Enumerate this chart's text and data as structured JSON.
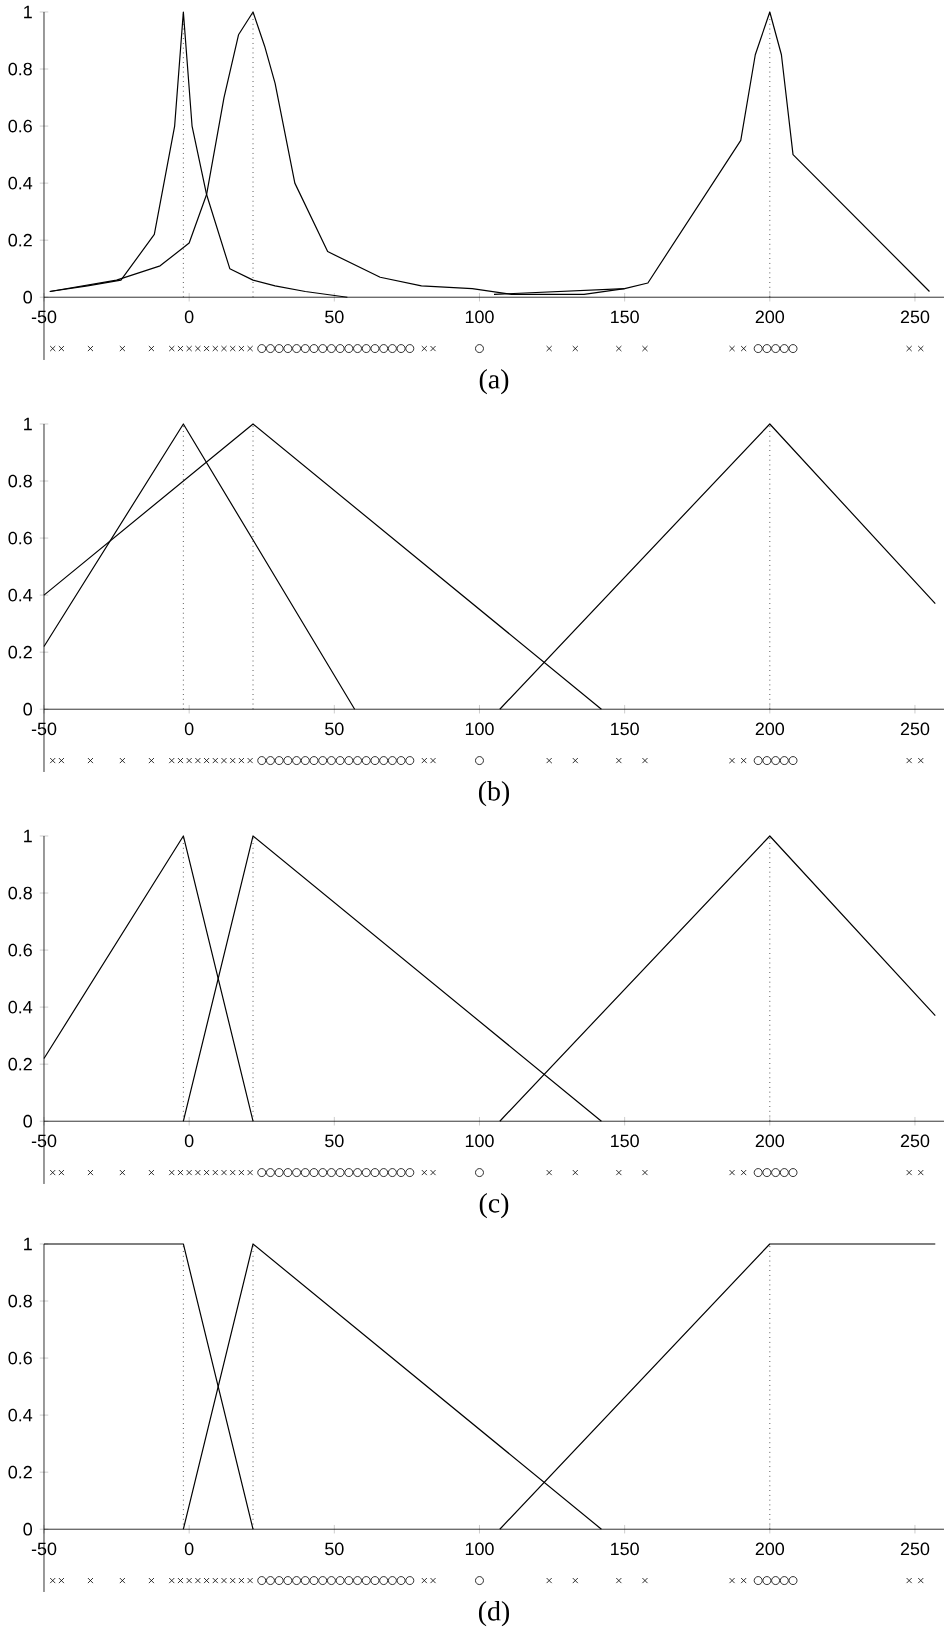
{
  "chart_data": [
    {
      "type": "line",
      "xlabel": "(a)",
      "xlim": [
        -50,
        260
      ],
      "ylim": [
        -0.22,
        1
      ],
      "xticks": [
        -50,
        0,
        50,
        100,
        150,
        200,
        250
      ],
      "yticks": [
        0,
        0.2,
        0.4,
        0.6,
        0.8,
        1
      ],
      "ref_lines": [
        {
          "axis": "x",
          "value": -2,
          "line_style": "dotted"
        },
        {
          "axis": "x",
          "value": 22,
          "line_style": "dotted"
        },
        {
          "axis": "x",
          "value": 200,
          "line_style": "dotted"
        }
      ],
      "series": [
        {
          "color": "#000000",
          "x": [
            -48,
            -35,
            -23.5,
            -12,
            -5,
            -2,
            1,
            6,
            14,
            22,
            29.6,
            40,
            54.5
          ],
          "values": [
            0.02,
            0.04,
            0.06,
            0.22,
            0.6,
            1,
            0.6,
            0.36,
            0.1,
            0.06,
            0.04,
            0.02,
            0
          ]
        },
        {
          "color": "#000000",
          "x": [
            -48,
            -25,
            -10,
            0,
            6,
            12,
            17,
            22,
            26,
            29.6,
            36.4,
            47.7,
            65.8,
            80,
            97.5,
            111,
            136,
            150
          ],
          "values": [
            0.02,
            0.06,
            0.11,
            0.19,
            0.36,
            0.7,
            0.92,
            1,
            0.88,
            0.75,
            0.4,
            0.16,
            0.07,
            0.04,
            0.03,
            0.01,
            0.01,
            0.03
          ]
        },
        {
          "color": "#000000",
          "x": [
            105,
            150,
            158,
            190,
            195,
            200,
            204,
            208,
            255
          ],
          "values": [
            0.01,
            0.03,
            0.05,
            0.55,
            0.85,
            1,
            0.85,
            0.5,
            0.02
          ]
        },
        {
          "type": "scatter",
          "color": "#000000",
          "marker": "cross",
          "x": [
            -47,
            -44,
            -34,
            -23,
            -13,
            -6,
            -3,
            0,
            3,
            6,
            9,
            12,
            15,
            18,
            21,
            81,
            84,
            124,
            133,
            148,
            157,
            187,
            191,
            248,
            252
          ],
          "values": [
            -0.18,
            -0.18,
            -0.18,
            -0.18,
            -0.18,
            -0.18,
            -0.18,
            -0.18,
            -0.18,
            -0.18,
            -0.18,
            -0.18,
            -0.18,
            -0.18,
            -0.18,
            -0.18,
            -0.18,
            -0.18,
            -0.18,
            -0.18,
            -0.18,
            -0.18,
            -0.18,
            -0.18,
            -0.18
          ]
        },
        {
          "type": "scatter",
          "color": "#000000",
          "marker": "circle",
          "x": [
            25,
            28,
            31,
            34,
            37,
            40,
            43,
            46,
            49,
            52,
            55,
            58,
            61,
            64,
            67,
            70,
            73,
            76,
            100,
            196,
            199,
            202,
            205,
            208
          ],
          "values": [
            -0.18,
            -0.18,
            -0.18,
            -0.18,
            -0.18,
            -0.18,
            -0.18,
            -0.18,
            -0.18,
            -0.18,
            -0.18,
            -0.18,
            -0.18,
            -0.18,
            -0.18,
            -0.18,
            -0.18,
            -0.18,
            -0.18,
            -0.18,
            -0.18,
            -0.18,
            -0.18,
            -0.18
          ]
        }
      ]
    },
    {
      "type": "line",
      "xlabel": "(b)",
      "xlim": [
        -50,
        260
      ],
      "ylim": [
        -0.22,
        1
      ],
      "xticks": [
        -50,
        0,
        50,
        100,
        150,
        200,
        250
      ],
      "yticks": [
        0,
        0.2,
        0.4,
        0.6,
        0.8,
        1
      ],
      "ref_lines": [
        {
          "axis": "x",
          "value": -2,
          "line_style": "dotted"
        },
        {
          "axis": "x",
          "value": 22,
          "line_style": "dotted"
        },
        {
          "axis": "x",
          "value": 200,
          "line_style": "dotted"
        }
      ],
      "series": [
        {
          "color": "#000000",
          "x": [
            -50,
            -2,
            57
          ],
          "values": [
            0.22,
            1,
            0
          ]
        },
        {
          "color": "#000000",
          "x": [
            -50,
            22,
            142
          ],
          "values": [
            0.4,
            1,
            0
          ]
        },
        {
          "color": "#000000",
          "x": [
            107,
            200,
            257
          ],
          "values": [
            0,
            1,
            0.37
          ]
        },
        {
          "type": "scatter",
          "color": "#000000",
          "marker": "cross",
          "x": [
            -47,
            -44,
            -34,
            -23,
            -13,
            -6,
            -3,
            0,
            3,
            6,
            9,
            12,
            15,
            18,
            21,
            81,
            84,
            124,
            133,
            148,
            157,
            187,
            191,
            248,
            252
          ],
          "values": [
            -0.18,
            -0.18,
            -0.18,
            -0.18,
            -0.18,
            -0.18,
            -0.18,
            -0.18,
            -0.18,
            -0.18,
            -0.18,
            -0.18,
            -0.18,
            -0.18,
            -0.18,
            -0.18,
            -0.18,
            -0.18,
            -0.18,
            -0.18,
            -0.18,
            -0.18,
            -0.18,
            -0.18,
            -0.18
          ]
        },
        {
          "type": "scatter",
          "color": "#000000",
          "marker": "circle",
          "x": [
            25,
            28,
            31,
            34,
            37,
            40,
            43,
            46,
            49,
            52,
            55,
            58,
            61,
            64,
            67,
            70,
            73,
            76,
            100,
            196,
            199,
            202,
            205,
            208
          ],
          "values": [
            -0.18,
            -0.18,
            -0.18,
            -0.18,
            -0.18,
            -0.18,
            -0.18,
            -0.18,
            -0.18,
            -0.18,
            -0.18,
            -0.18,
            -0.18,
            -0.18,
            -0.18,
            -0.18,
            -0.18,
            -0.18,
            -0.18,
            -0.18,
            -0.18,
            -0.18,
            -0.18,
            -0.18
          ]
        }
      ]
    },
    {
      "type": "line",
      "xlabel": "(c)",
      "xlim": [
        -50,
        260
      ],
      "ylim": [
        -0.22,
        1
      ],
      "xticks": [
        -50,
        0,
        50,
        100,
        150,
        200,
        250
      ],
      "yticks": [
        0,
        0.2,
        0.4,
        0.6,
        0.8,
        1
      ],
      "ref_lines": [
        {
          "axis": "x",
          "value": -2,
          "line_style": "dotted"
        },
        {
          "axis": "x",
          "value": 22,
          "line_style": "dotted"
        },
        {
          "axis": "x",
          "value": 200,
          "line_style": "dotted"
        }
      ],
      "series": [
        {
          "color": "#000000",
          "x": [
            -50,
            -2,
            22
          ],
          "values": [
            0.22,
            1,
            0
          ]
        },
        {
          "color": "#000000",
          "x": [
            -2,
            22,
            142
          ],
          "values": [
            0,
            1,
            0
          ]
        },
        {
          "color": "#000000",
          "x": [
            107,
            200,
            257
          ],
          "values": [
            0,
            1,
            0.37
          ]
        },
        {
          "type": "scatter",
          "color": "#000000",
          "marker": "cross",
          "x": [
            -47,
            -44,
            -34,
            -23,
            -13,
            -6,
            -3,
            0,
            3,
            6,
            9,
            12,
            15,
            18,
            21,
            81,
            84,
            124,
            133,
            148,
            157,
            187,
            191,
            248,
            252
          ],
          "values": [
            -0.18,
            -0.18,
            -0.18,
            -0.18,
            -0.18,
            -0.18,
            -0.18,
            -0.18,
            -0.18,
            -0.18,
            -0.18,
            -0.18,
            -0.18,
            -0.18,
            -0.18,
            -0.18,
            -0.18,
            -0.18,
            -0.18,
            -0.18,
            -0.18,
            -0.18,
            -0.18,
            -0.18,
            -0.18
          ]
        },
        {
          "type": "scatter",
          "color": "#000000",
          "marker": "circle",
          "x": [
            25,
            28,
            31,
            34,
            37,
            40,
            43,
            46,
            49,
            52,
            55,
            58,
            61,
            64,
            67,
            70,
            73,
            76,
            100,
            196,
            199,
            202,
            205,
            208
          ],
          "values": [
            -0.18,
            -0.18,
            -0.18,
            -0.18,
            -0.18,
            -0.18,
            -0.18,
            -0.18,
            -0.18,
            -0.18,
            -0.18,
            -0.18,
            -0.18,
            -0.18,
            -0.18,
            -0.18,
            -0.18,
            -0.18,
            -0.18,
            -0.18,
            -0.18,
            -0.18,
            -0.18,
            -0.18
          ]
        }
      ]
    },
    {
      "type": "line",
      "xlabel": "(d)",
      "xlim": [
        -50,
        260
      ],
      "ylim": [
        -0.22,
        1
      ],
      "xticks": [
        -50,
        0,
        50,
        100,
        150,
        200,
        250
      ],
      "yticks": [
        0,
        0.2,
        0.4,
        0.6,
        0.8,
        1
      ],
      "ref_lines": [
        {
          "axis": "x",
          "value": -2,
          "line_style": "dotted"
        },
        {
          "axis": "x",
          "value": 22,
          "line_style": "dotted"
        },
        {
          "axis": "x",
          "value": 200,
          "line_style": "dotted"
        }
      ],
      "series": [
        {
          "color": "#000000",
          "x": [
            -50,
            -2,
            22
          ],
          "values": [
            1,
            1,
            0
          ]
        },
        {
          "color": "#000000",
          "x": [
            -2,
            22,
            142
          ],
          "values": [
            0,
            1,
            0
          ]
        },
        {
          "color": "#000000",
          "x": [
            107,
            200,
            257
          ],
          "values": [
            0,
            1,
            1
          ]
        },
        {
          "type": "scatter",
          "color": "#000000",
          "marker": "cross",
          "x": [
            -47,
            -44,
            -34,
            -23,
            -13,
            -6,
            -3,
            0,
            3,
            6,
            9,
            12,
            15,
            18,
            21,
            81,
            84,
            124,
            133,
            148,
            157,
            187,
            191,
            248,
            252
          ],
          "values": [
            -0.18,
            -0.18,
            -0.18,
            -0.18,
            -0.18,
            -0.18,
            -0.18,
            -0.18,
            -0.18,
            -0.18,
            -0.18,
            -0.18,
            -0.18,
            -0.18,
            -0.18,
            -0.18,
            -0.18,
            -0.18,
            -0.18,
            -0.18,
            -0.18,
            -0.18,
            -0.18,
            -0.18,
            -0.18
          ]
        },
        {
          "type": "scatter",
          "color": "#000000",
          "marker": "circle",
          "x": [
            25,
            28,
            31,
            34,
            37,
            40,
            43,
            46,
            49,
            52,
            55,
            58,
            61,
            64,
            67,
            70,
            73,
            76,
            100,
            196,
            199,
            202,
            205,
            208
          ],
          "values": [
            -0.18,
            -0.18,
            -0.18,
            -0.18,
            -0.18,
            -0.18,
            -0.18,
            -0.18,
            -0.18,
            -0.18,
            -0.18,
            -0.18,
            -0.18,
            -0.18,
            -0.18,
            -0.18,
            -0.18,
            -0.18,
            -0.18,
            -0.18,
            -0.18,
            -0.18,
            -0.18,
            -0.18
          ]
        }
      ]
    }
  ]
}
